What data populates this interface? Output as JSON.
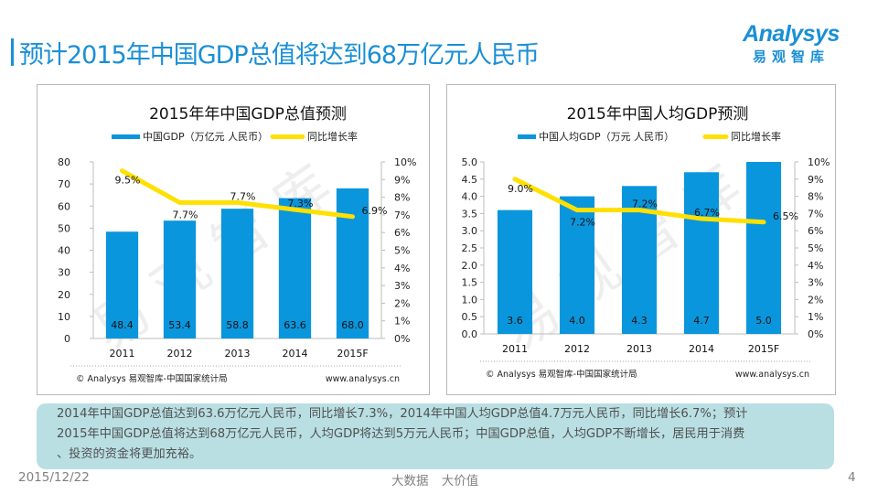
{
  "slide": {
    "title": "预计2015年中国GDP总值将达到68万亿元人民币",
    "logo_main": "Analysys",
    "logo_sub": "易观智库",
    "summary": "2014年中国GDP总值达到63.6万亿元人民币，同比增长7.3%，2014年中国人均GDP总值4.7万元人民币，同比增长6.7%；预计\n2015年中国GDP总值将达到68万亿元人民币，人均GDP将达到5万元人民币；中国GDP总值，人均GDP不断增长，居民用于消费\n、投资的资金将更加充裕。",
    "footer_date": "2015/12/22",
    "footer_slogan": "大数据 大价值",
    "page_number": "4"
  },
  "colors": {
    "brand": "#1a8fd6",
    "bar": "#0a96dc",
    "line": "#ffe000",
    "summary_bg": "#b9dfe3"
  },
  "chart_data": [
    {
      "type": "bar",
      "title": "2015年年中国GDP总值预测",
      "categories": [
        "2011",
        "2012",
        "2013",
        "2014",
        "2015F"
      ],
      "series": [
        {
          "name": "中国GDP（万亿元 人民币）",
          "kind": "bar",
          "axis": "left",
          "values": [
            48.4,
            53.4,
            58.8,
            63.6,
            68.0
          ],
          "labels": [
            "48.4",
            "53.4",
            "58.8",
            "63.6",
            "68.0"
          ]
        },
        {
          "name": "同比增长率",
          "kind": "line",
          "axis": "right",
          "values": [
            9.5,
            7.7,
            7.7,
            7.3,
            6.9
          ],
          "labels": [
            "9.5%",
            "7.7%",
            "7.7%",
            "7.3%",
            "6.9%"
          ]
        }
      ],
      "left_axis": {
        "ylim": [
          0,
          80
        ],
        "ticks": [
          "0",
          "10",
          "20",
          "30",
          "40",
          "50",
          "60",
          "70",
          "80"
        ]
      },
      "right_axis": {
        "ylim": [
          0,
          10
        ],
        "ticks": [
          "0%",
          "1%",
          "2%",
          "3%",
          "4%",
          "5%",
          "6%",
          "7%",
          "8%",
          "9%",
          "10%"
        ]
      },
      "legend": "top",
      "source": "© Analysys 易观智库-中国国家统计局",
      "website": "www.analysys.cn",
      "watermark": "易观智库"
    },
    {
      "type": "bar",
      "title": "2015年中国人均GDP预测",
      "categories": [
        "2011",
        "2012",
        "2013",
        "2014",
        "2015F"
      ],
      "series": [
        {
          "name": "中国人均GDP（万元 人民币）",
          "kind": "bar",
          "axis": "left",
          "values": [
            3.6,
            4.0,
            4.3,
            4.7,
            5.0
          ],
          "labels": [
            "3.6",
            "4.0",
            "4.3",
            "4.7",
            "5.0"
          ]
        },
        {
          "name": "同比增长率",
          "kind": "line",
          "axis": "right",
          "values": [
            9.0,
            7.2,
            7.2,
            6.7,
            6.5
          ],
          "labels": [
            "9.0%",
            "7.2%",
            "7.2%",
            "6.7%",
            "6.5%"
          ]
        }
      ],
      "left_axis": {
        "ylim": [
          0,
          5
        ],
        "ticks": [
          "0.0",
          "0.5",
          "1.0",
          "1.5",
          "2.0",
          "2.5",
          "3.0",
          "3.5",
          "4.0",
          "4.5",
          "5.0"
        ]
      },
      "right_axis": {
        "ylim": [
          0,
          10
        ],
        "ticks": [
          "0%",
          "1%",
          "2%",
          "3%",
          "4%",
          "5%",
          "6%",
          "7%",
          "8%",
          "9%",
          "10%"
        ]
      },
      "legend": "top",
      "source": "© Analysys 易观智库-中国国家统计局",
      "website": "www.analysys.cn",
      "watermark": "易观智库"
    }
  ]
}
